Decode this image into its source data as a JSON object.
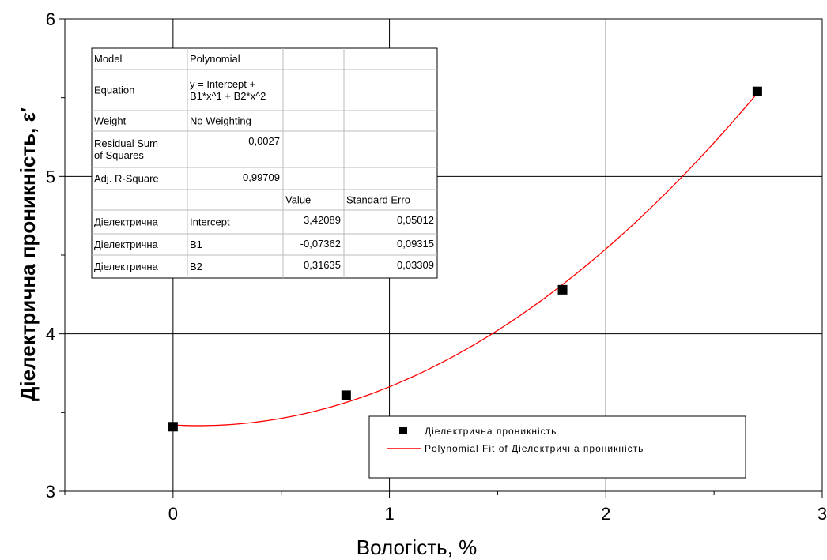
{
  "colors": {
    "fit": "#ff0000",
    "points": "#000000",
    "grid": "#000000"
  },
  "chart_data": {
    "type": "scatter",
    "xlabel": "Вологість, %",
    "ylabel": "Діелектрична проникність, ε′",
    "xlim": [
      -0.5,
      3
    ],
    "ylim": [
      3,
      6
    ],
    "grid": true,
    "x_ticks": [
      0,
      1,
      2,
      3
    ],
    "y_ticks": [
      3,
      4,
      5,
      6
    ],
    "x_tick_labels": [
      "0",
      "1",
      "2",
      "3"
    ],
    "y_tick_labels": [
      "3",
      "4",
      "5",
      "6"
    ],
    "series": [
      {
        "name": "Діелектрична проникність",
        "kind": "scatter",
        "x": [
          0,
          0.8,
          1.8,
          2.7
        ],
        "y": [
          3.41,
          3.61,
          4.28,
          5.54
        ]
      },
      {
        "name": "Polynomial Fit of Діелектрична проникність",
        "kind": "line",
        "coeffs": [
          3.42089,
          -0.07362,
          0.31635
        ],
        "x_range": [
          0,
          2.7
        ]
      }
    ],
    "legend": {
      "placement": "bottom-right",
      "entries": [
        "Діелектрична проникність",
        "Polynomial Fit of Діелектрична проникність"
      ]
    },
    "fit_table": {
      "rows": [
        [
          "Model",
          "Polynomial",
          "",
          ""
        ],
        [
          "Equation",
          "y = Intercept + B1*x^1 + B2*x^2",
          "",
          ""
        ],
        [
          "Weight",
          "No Weighting",
          "",
          ""
        ],
        [
          "Residual Sum of Squares",
          "0,0027",
          "",
          ""
        ],
        [
          "Adj. R-Square",
          "0,99709",
          "",
          ""
        ],
        [
          "",
          "",
          "Value",
          "Standard Erro"
        ],
        [
          "Діелектрична",
          "Intercept",
          "3,42089",
          "0,05012"
        ],
        [
          "Діелектрична",
          "B1",
          "-0,07362",
          "0,09315"
        ],
        [
          "Діелектрична",
          "B2",
          "0,31635",
          "0,03309"
        ]
      ]
    }
  }
}
